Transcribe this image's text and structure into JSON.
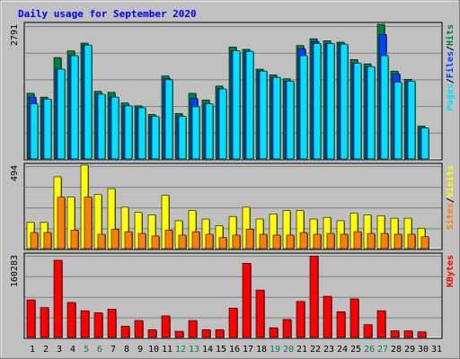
{
  "chart_data": [
    {
      "type": "bar",
      "title": "Daily usage for September 2020",
      "panel": "hits-files-pages",
      "ylabel_parts": [
        "Pages",
        "Files",
        "Hits"
      ],
      "y_max_label": "2791",
      "ylim": [
        0,
        2791
      ],
      "grid": true,
      "categories": [
        "1",
        "2",
        "3",
        "4",
        "5",
        "6",
        "7",
        "8",
        "9",
        "10",
        "11",
        "12",
        "13",
        "14",
        "15",
        "16",
        "17",
        "18",
        "19",
        "20",
        "21",
        "22",
        "23",
        "24",
        "25",
        "26",
        "27",
        "28",
        "29",
        "30",
        "31"
      ],
      "series": [
        {
          "name": "Hits",
          "color": "#008040",
          "values": [
            1360,
            1280,
            2100,
            2240,
            2400,
            1400,
            1380,
            1160,
            1100,
            920,
            1720,
            940,
            1360,
            1220,
            1510,
            2320,
            2270,
            1860,
            1740,
            1660,
            2350,
            2490,
            2450,
            2420,
            2060,
            1970,
            2790,
            1820,
            1650,
            680,
            null
          ]
        },
        {
          "name": "Files",
          "color": "#0040ff",
          "values": [
            1280,
            1240,
            1860,
            2140,
            2360,
            1340,
            1280,
            1100,
            1060,
            880,
            1660,
            880,
            1250,
            1140,
            1450,
            2240,
            2230,
            1820,
            1690,
            1610,
            2280,
            2430,
            2390,
            2380,
            1980,
            1910,
            2580,
            1760,
            1610,
            640,
            null
          ]
        },
        {
          "name": "Pages",
          "color": "#00e0ff",
          "values": [
            1140,
            1240,
            1860,
            2140,
            2360,
            1340,
            1280,
            1100,
            1060,
            880,
            1640,
            880,
            1080,
            1140,
            1450,
            2240,
            2230,
            1820,
            1690,
            1610,
            2140,
            2390,
            2390,
            2380,
            1980,
            1910,
            2140,
            1590,
            1610,
            640,
            null
          ]
        }
      ]
    },
    {
      "type": "bar",
      "panel": "visits-sites",
      "ylabel_parts": [
        "Sites",
        "Visits"
      ],
      "y_max_label": "494",
      "ylim": [
        0,
        494
      ],
      "grid": true,
      "categories": [
        "1",
        "2",
        "3",
        "4",
        "5",
        "6",
        "7",
        "8",
        "9",
        "10",
        "11",
        "12",
        "13",
        "14",
        "15",
        "16",
        "17",
        "18",
        "19",
        "20",
        "21",
        "22",
        "23",
        "24",
        "25",
        "26",
        "27",
        "28",
        "29",
        "30",
        "31"
      ],
      "series": [
        {
          "name": "Visits",
          "color": "#ffff00",
          "values": [
            155,
            155,
            425,
            305,
            494,
            320,
            355,
            245,
            215,
            200,
            315,
            165,
            225,
            175,
            135,
            190,
            245,
            175,
            205,
            225,
            225,
            175,
            185,
            165,
            210,
            200,
            195,
            180,
            180,
            120,
            null
          ]
        },
        {
          "name": "Sites",
          "color": "#ff8000",
          "values": [
            95,
            95,
            305,
            110,
            305,
            85,
            115,
            100,
            90,
            75,
            110,
            80,
            100,
            85,
            65,
            80,
            115,
            85,
            80,
            80,
            95,
            85,
            90,
            85,
            100,
            90,
            90,
            85,
            85,
            70,
            null
          ]
        }
      ]
    },
    {
      "type": "bar",
      "panel": "kbytes",
      "ylabel_parts": [
        "KBytes"
      ],
      "y_max_label": "160283",
      "ylim": [
        0,
        160283
      ],
      "grid": true,
      "categories": [
        "1",
        "2",
        "3",
        "4",
        "5",
        "6",
        "7",
        "8",
        "9",
        "10",
        "11",
        "12",
        "13",
        "14",
        "15",
        "16",
        "17",
        "18",
        "19",
        "20",
        "21",
        "22",
        "23",
        "24",
        "25",
        "26",
        "27",
        "28",
        "29",
        "30",
        "31"
      ],
      "series": [
        {
          "name": "KBytes",
          "color": "#ff0000",
          "values": [
            73000,
            58000,
            150000,
            68000,
            52000,
            48000,
            55000,
            22000,
            33000,
            15000,
            42000,
            12000,
            33000,
            15000,
            15000,
            57000,
            144000,
            92000,
            19000,
            35000,
            70000,
            158000,
            80000,
            50000,
            75000,
            25000,
            52000,
            13000,
            13000,
            11000,
            null
          ]
        }
      ]
    }
  ],
  "x_ticks": [
    {
      "label": "1",
      "color": "#000000"
    },
    {
      "label": "2",
      "color": "#000000"
    },
    {
      "label": "3",
      "color": "#000000"
    },
    {
      "label": "4",
      "color": "#000000"
    },
    {
      "label": "5",
      "color": "#00805c"
    },
    {
      "label": "6",
      "color": "#00805c"
    },
    {
      "label": "7",
      "color": "#000000"
    },
    {
      "label": "8",
      "color": "#000000"
    },
    {
      "label": "9",
      "color": "#000000"
    },
    {
      "label": "10",
      "color": "#000000"
    },
    {
      "label": "11",
      "color": "#000000"
    },
    {
      "label": "12",
      "color": "#00805c"
    },
    {
      "label": "13",
      "color": "#00805c"
    },
    {
      "label": "14",
      "color": "#000000"
    },
    {
      "label": "15",
      "color": "#000000"
    },
    {
      "label": "16",
      "color": "#000000"
    },
    {
      "label": "17",
      "color": "#000000"
    },
    {
      "label": "18",
      "color": "#000000"
    },
    {
      "label": "19",
      "color": "#00805c"
    },
    {
      "label": "20",
      "color": "#00805c"
    },
    {
      "label": "21",
      "color": "#000000"
    },
    {
      "label": "22",
      "color": "#000000"
    },
    {
      "label": "23",
      "color": "#000000"
    },
    {
      "label": "24",
      "color": "#000000"
    },
    {
      "label": "25",
      "color": "#000000"
    },
    {
      "label": "26",
      "color": "#00805c"
    },
    {
      "label": "27",
      "color": "#00805c"
    },
    {
      "label": "28",
      "color": "#000000"
    },
    {
      "label": "29",
      "color": "#000000"
    },
    {
      "label": "30",
      "color": "#000000"
    },
    {
      "label": "31",
      "color": "#000000"
    }
  ],
  "colors": {
    "background": "#c0c0c0",
    "title": "#0000ff",
    "separator": "#000000",
    "grid": "#808080"
  }
}
